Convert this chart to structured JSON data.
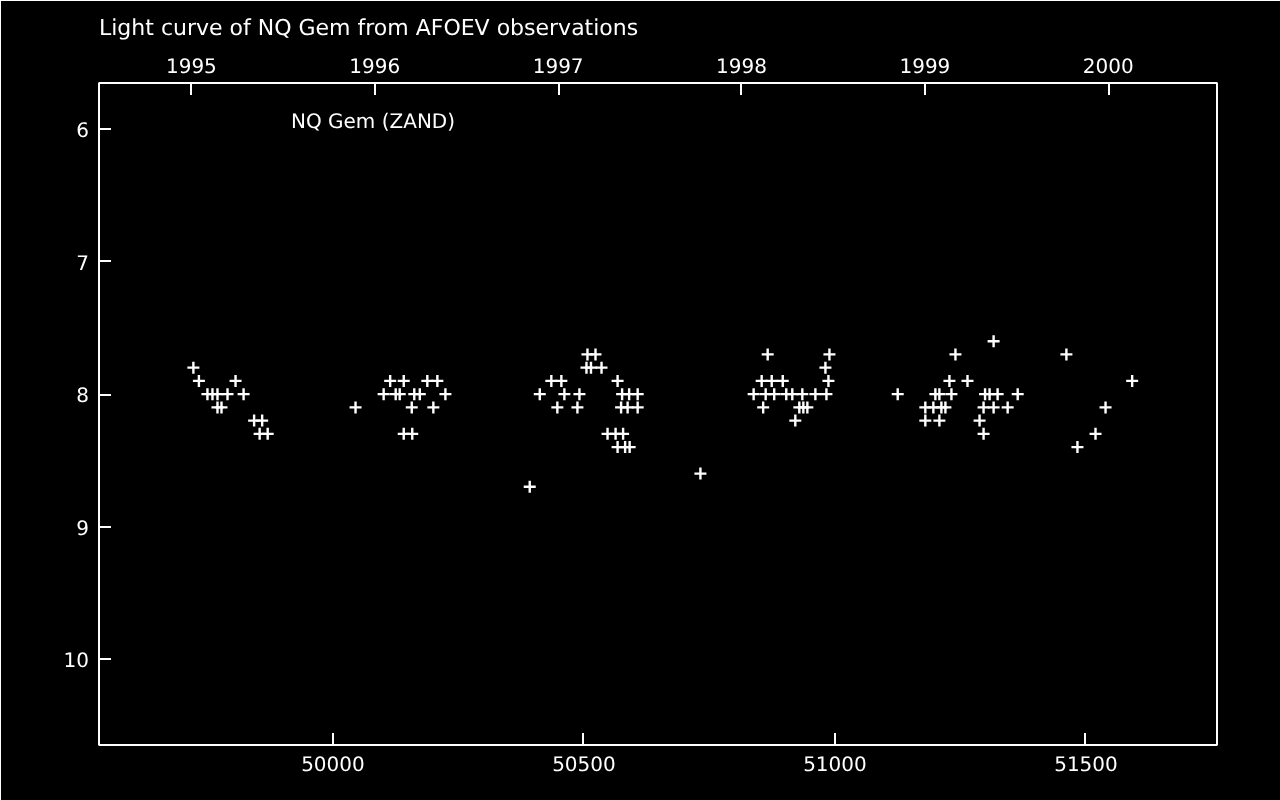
{
  "chart_data": {
    "type": "scatter",
    "title": "Light curve of NQ Gem from AFOEV observations",
    "annotations": [
      "NQ Gem (ZAND)"
    ],
    "marker": "cross",
    "grid": false,
    "xlim": [
      49534,
      51761
    ],
    "xticks": [
      50000,
      50500,
      51000,
      51500
    ],
    "x2lim": [
      1994.496,
      2000.593
    ],
    "x2ticks": [
      1995,
      1996,
      1997,
      1998,
      1999,
      2000
    ],
    "ylim": [
      10.65,
      5.65
    ],
    "yticks": [
      6,
      7,
      8,
      9,
      10
    ],
    "series": [
      {
        "color": "#ffffff",
        "x": [
          49722,
          49733,
          49806,
          49750,
          49760,
          49770,
          49790,
          49822,
          49770,
          49778,
          49843,
          49859,
          49854,
          49870,
          50045,
          50114,
          50141,
          50188,
          50208,
          50101,
          50125,
          50133,
          50162,
          50173,
          50224,
          50157,
          50200,
          50141,
          50158,
          50507,
          50523,
          50505,
          50514,
          50535,
          50435,
          50455,
          50567,
          50412,
          50461,
          50491,
          50576,
          50590,
          50607,
          50447,
          50487,
          50574,
          50587,
          50607,
          50547,
          50563,
          50578,
          50567,
          50582,
          50591,
          50392,
          50732,
          50866,
          50989,
          50981,
          50854,
          50874,
          50896,
          50987,
          50838,
          50862,
          50879,
          50903,
          50915,
          50935,
          50961,
          50983,
          51125,
          50857,
          50929,
          50937,
          50945,
          50921,
          51316,
          51240,
          51461,
          51228,
          51264,
          51592,
          51200,
          51208,
          51232,
          51299,
          51308,
          51324,
          51364,
          51180,
          51196,
          51212,
          51220,
          51296,
          51316,
          51344,
          51539,
          51180,
          51208,
          51288,
          51296,
          51519,
          51483
        ],
        "values": [
          7.8,
          7.9,
          7.9,
          8.0,
          8.0,
          8.0,
          8.0,
          8.0,
          8.1,
          8.1,
          8.2,
          8.2,
          8.3,
          8.3,
          8.1,
          7.9,
          7.9,
          7.9,
          7.9,
          8.0,
          8.0,
          8.0,
          8.0,
          8.0,
          8.0,
          8.1,
          8.1,
          8.3,
          8.3,
          7.7,
          7.7,
          7.8,
          7.8,
          7.8,
          7.9,
          7.9,
          7.9,
          8.0,
          8.0,
          8.0,
          8.0,
          8.0,
          8.0,
          8.1,
          8.1,
          8.1,
          8.1,
          8.1,
          8.3,
          8.3,
          8.3,
          8.4,
          8.4,
          8.4,
          8.7,
          8.6,
          7.7,
          7.7,
          7.8,
          7.9,
          7.9,
          7.9,
          7.9,
          8.0,
          8.0,
          8.0,
          8.0,
          8.0,
          8.0,
          8.0,
          8.0,
          8.0,
          8.1,
          8.1,
          8.1,
          8.1,
          8.2,
          7.6,
          7.7,
          7.7,
          7.9,
          7.9,
          7.9,
          8.0,
          8.0,
          8.0,
          8.0,
          8.0,
          8.0,
          8.0,
          8.1,
          8.1,
          8.1,
          8.1,
          8.1,
          8.1,
          8.1,
          8.1,
          8.2,
          8.2,
          8.2,
          8.3,
          8.3,
          8.4
        ]
      }
    ]
  }
}
